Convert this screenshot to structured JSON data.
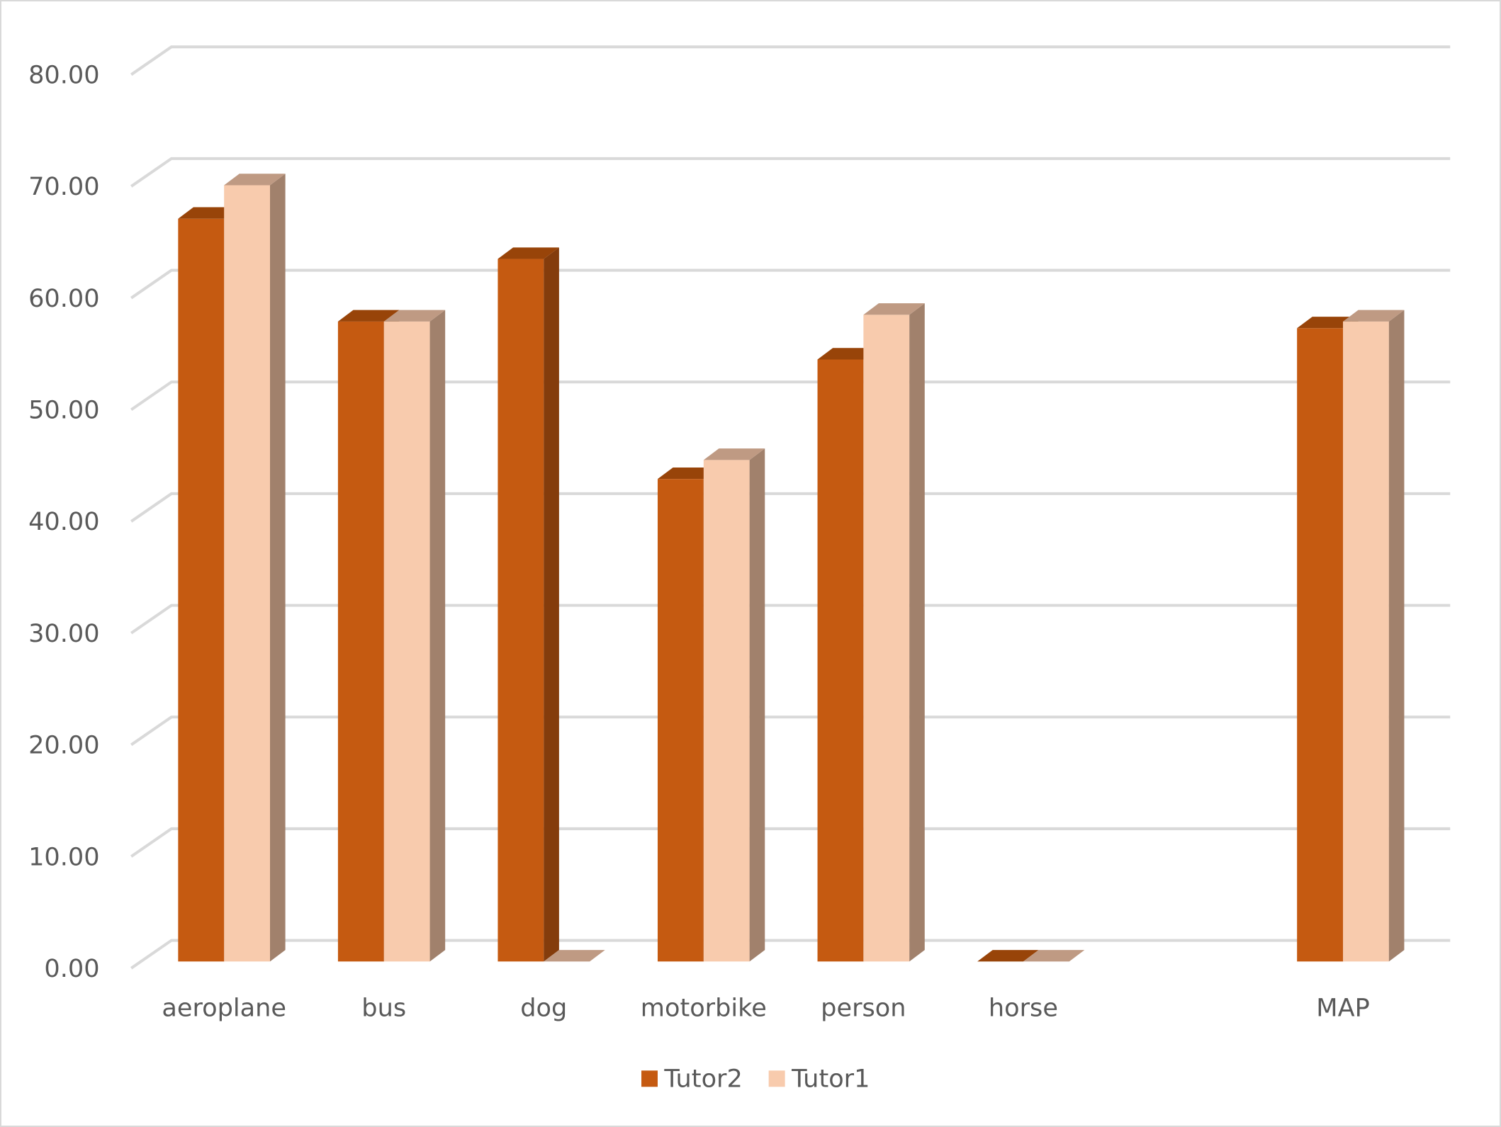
{
  "chart_data": {
    "type": "bar",
    "style": "3d-clustered-column",
    "title": "",
    "xlabel": "",
    "ylabel": "",
    "categories": [
      "aeroplane",
      "bus",
      "dog",
      "motorbike",
      "person",
      "horse",
      "",
      "MAP"
    ],
    "series": [
      {
        "name": "Tutor2",
        "color": "#C55A11",
        "values": [
          66.5,
          57.3,
          62.9,
          43.2,
          53.9,
          0,
          null,
          56.7
        ]
      },
      {
        "name": "Tutor1",
        "color": "#F8CBAD",
        "values": [
          69.5,
          57.3,
          0,
          44.9,
          57.9,
          0,
          null,
          57.3
        ]
      }
    ],
    "ylim": [
      0,
      80
    ],
    "yticks": [
      "0.00",
      "10.00",
      "20.00",
      "30.00",
      "40.00",
      "50.00",
      "60.00",
      "70.00",
      "80.00"
    ],
    "grid": true,
    "legend": "bottom"
  }
}
